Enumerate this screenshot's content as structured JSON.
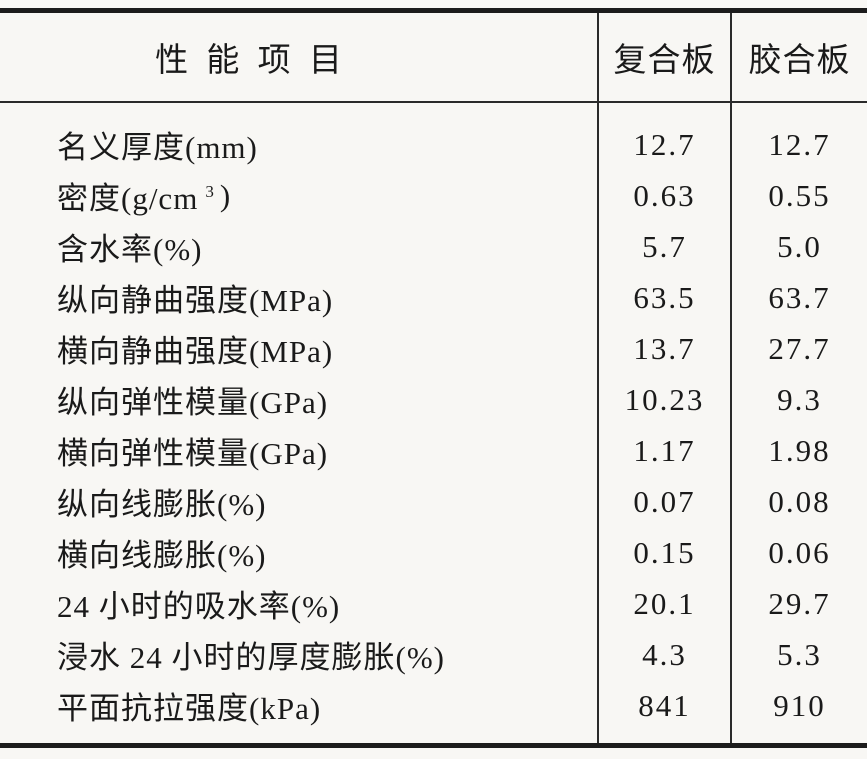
{
  "table": {
    "header": {
      "item_col": "性 能 项 目",
      "col1": "复合板",
      "col2": "胶合板"
    },
    "rows": [
      {
        "label": "名义厚度(mm)",
        "col1": "12.7",
        "col2": "12.7"
      },
      {
        "label": "密度(g/cm",
        "sup": "3",
        "suffix": ")",
        "col1": "0.63",
        "col2": "0.55"
      },
      {
        "label": "含水率(%)",
        "col1": "5.7",
        "col2": "5.0"
      },
      {
        "label": "纵向静曲强度(MPa)",
        "col1": "63.5",
        "col2": "63.7"
      },
      {
        "label": "横向静曲强度(MPa)",
        "col1": "13.7",
        "col2": "27.7"
      },
      {
        "label": "纵向弹性模量(GPa)",
        "col1": "10.23",
        "col2": "9.3"
      },
      {
        "label": "横向弹性模量(GPa)",
        "col1": "1.17",
        "col2": "1.98"
      },
      {
        "label": "纵向线膨胀(%)",
        "col1": "0.07",
        "col2": "0.08"
      },
      {
        "label": "横向线膨胀(%)",
        "col1": "0.15",
        "col2": "0.06"
      },
      {
        "label": "24 小时的吸水率(%)",
        "col1": "20.1",
        "col2": "29.7"
      },
      {
        "label": "浸水 24 小时的厚度膨胀(%)",
        "col1": "4.3",
        "col2": "5.3"
      },
      {
        "label": "平面抗拉强度(kPa)",
        "col1": "841",
        "col2": "910"
      }
    ],
    "colors": {
      "ink": "#1c1c1c",
      "paper": "#f8f7f4"
    }
  }
}
